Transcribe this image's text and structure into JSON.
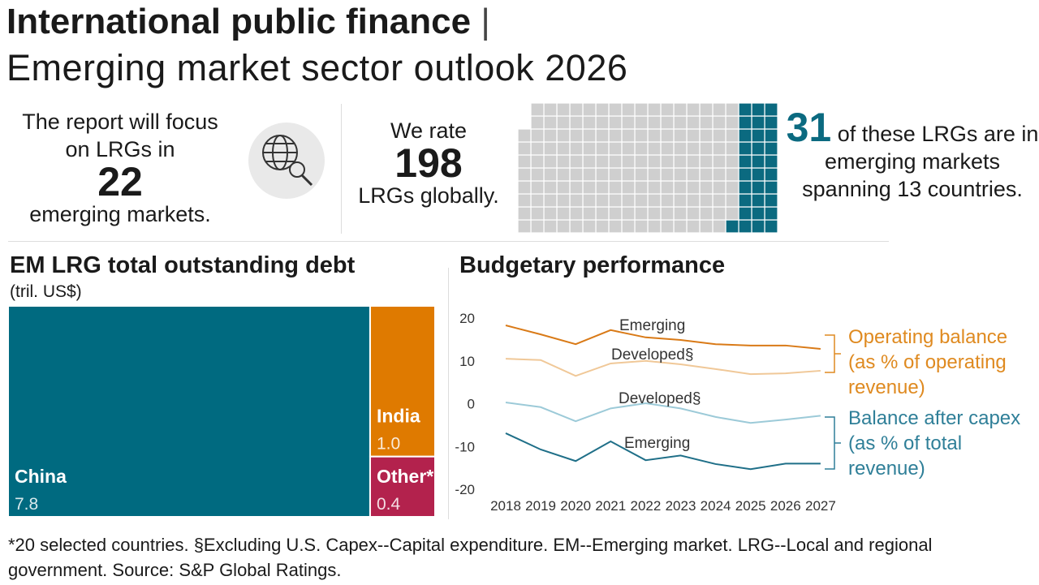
{
  "header": {
    "title": "International public finance",
    "separator": "|",
    "subtitle": "Emerging market sector outlook 2026"
  },
  "focus": {
    "text_before": "The report will focus on LRGs in",
    "number": "22",
    "text_after": "emerging markets."
  },
  "rate": {
    "text_before": "We rate",
    "text_after": "LRGs globally."
  },
  "emerging": {
    "text_after": "of these LRGs are in emerging markets spanning 13 countries."
  },
  "chart_data": [
    {
      "type": "waffle",
      "total": 198,
      "highlighted": 31,
      "color": "#cfcfcf",
      "highlight_color": "#0b6a80"
    },
    {
      "type": "treemap",
      "title": "EM LRG total outstanding debt",
      "subtitle": "(tril. US$)",
      "categories": [
        "China",
        "India",
        "Other*"
      ],
      "values": [
        7.8,
        1.0,
        0.4
      ],
      "value_labels": [
        "7.8",
        "1.0",
        "0.4"
      ],
      "colors": [
        "#006a80",
        "#df7a00",
        "#b3224d"
      ]
    },
    {
      "type": "line",
      "title": "Budgetary performance",
      "categories": [
        "2018",
        "2019",
        "2020",
        "2021",
        "2022",
        "2023",
        "2024",
        "2025",
        "2026",
        "2027"
      ],
      "ylim": [
        -20,
        20
      ],
      "yticks": [
        20,
        10,
        0,
        -10,
        -20
      ],
      "series_groups": [
        {
          "name": "Operating balance (as % of operating revenue)",
          "color": "#df8a20",
          "series": [
            {
              "name": "Emerging",
              "color": "#d97a17",
              "values": [
                18.1,
                16.0,
                13.7,
                17.0,
                15.3,
                14.7,
                13.7,
                13.4,
                13.4,
                12.6
              ]
            },
            {
              "name": "Developed§",
              "color": "#f0c898",
              "values": [
                10.3,
                10.0,
                6.3,
                9.2,
                9.8,
                9.0,
                7.9,
                6.7,
                6.9,
                7.5
              ]
            }
          ]
        },
        {
          "name": "Balance after capex (as % of total revenue)",
          "color": "#2f7f98",
          "series": [
            {
              "name": "Developed§",
              "color": "#9ccad8",
              "values": [
                0.1,
                -1.0,
                -4.3,
                -1.3,
                -0.1,
                -1.3,
                -3.3,
                -4.7,
                -3.9,
                -3.0
              ]
            },
            {
              "name": "Emerging",
              "color": "#1f6f88",
              "values": [
                -7.1,
                -10.9,
                -13.6,
                -9.0,
                -13.4,
                -12.3,
                -14.3,
                -15.5,
                -14.2,
                -14.2
              ]
            }
          ]
        }
      ]
    }
  ],
  "footnote": "*20 selected countries. §Excluding U.S.  Capex--Capital expenditure. EM--Emerging market. LRG--Local and regional government. Source: S&P Global Ratings."
}
